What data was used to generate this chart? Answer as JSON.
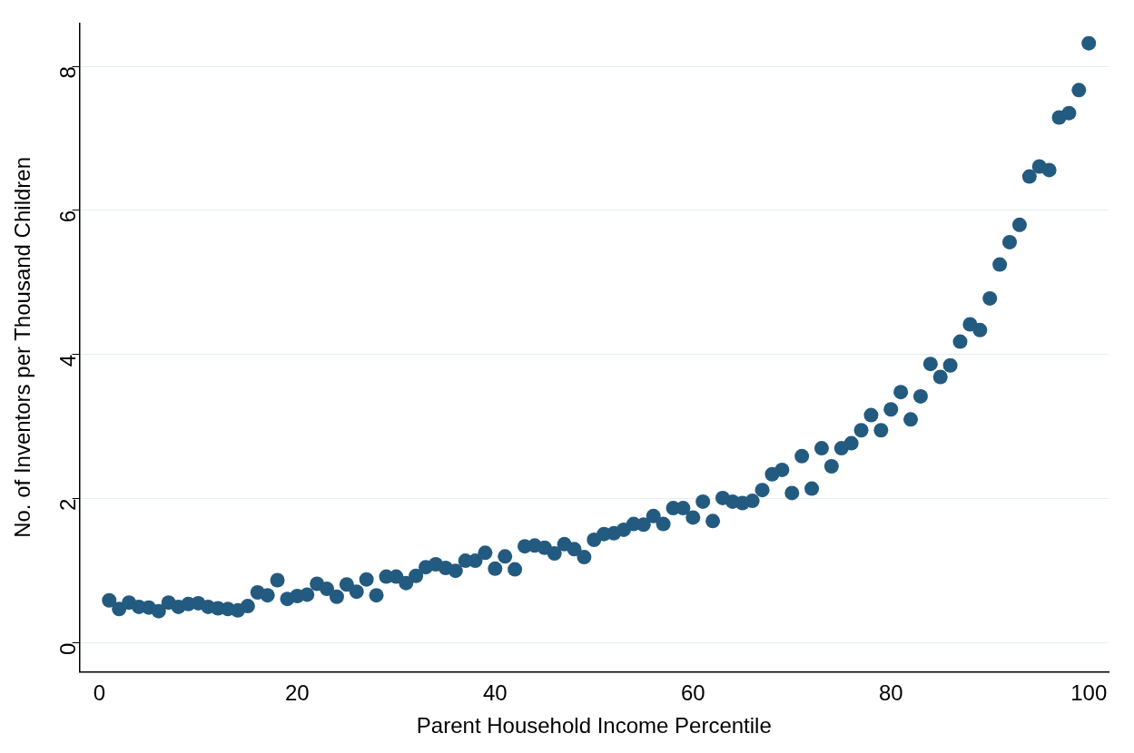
{
  "chart_data": {
    "type": "scatter",
    "xlabel": "Parent Household Income Percentile",
    "ylabel": "No. of Inventors per Thousand Children",
    "x": [
      1,
      2,
      3,
      4,
      5,
      6,
      7,
      8,
      9,
      10,
      11,
      12,
      13,
      14,
      15,
      16,
      17,
      18,
      19,
      20,
      21,
      22,
      23,
      24,
      25,
      26,
      27,
      28,
      29,
      30,
      31,
      32,
      33,
      34,
      35,
      36,
      37,
      38,
      39,
      40,
      41,
      42,
      43,
      44,
      45,
      46,
      47,
      48,
      49,
      50,
      51,
      52,
      53,
      54,
      55,
      56,
      57,
      58,
      59,
      60,
      61,
      62,
      63,
      64,
      65,
      66,
      67,
      68,
      69,
      70,
      71,
      72,
      73,
      74,
      75,
      76,
      77,
      78,
      79,
      80,
      81,
      82,
      83,
      84,
      85,
      86,
      87,
      88,
      89,
      90,
      91,
      92,
      93,
      94,
      95,
      96,
      97,
      98,
      99,
      100
    ],
    "values": [
      0.59,
      0.47,
      0.56,
      0.5,
      0.49,
      0.44,
      0.56,
      0.5,
      0.54,
      0.55,
      0.5,
      0.48,
      0.47,
      0.45,
      0.51,
      0.7,
      0.66,
      0.87,
      0.61,
      0.65,
      0.67,
      0.82,
      0.75,
      0.64,
      0.81,
      0.71,
      0.88,
      0.66,
      0.92,
      0.92,
      0.83,
      0.93,
      1.05,
      1.09,
      1.04,
      1.0,
      1.14,
      1.14,
      1.25,
      1.03,
      1.2,
      1.02,
      1.34,
      1.35,
      1.32,
      1.24,
      1.37,
      1.3,
      1.19,
      1.43,
      1.51,
      1.52,
      1.57,
      1.65,
      1.64,
      1.76,
      1.65,
      1.87,
      1.87,
      1.74,
      1.96,
      1.69,
      2.01,
      1.96,
      1.94,
      1.97,
      2.12,
      2.34,
      2.4,
      2.08,
      2.59,
      2.14,
      2.7,
      2.45,
      2.7,
      2.77,
      2.95,
      3.16,
      2.95,
      3.24,
      3.48,
      3.1,
      3.42,
      3.87,
      3.69,
      3.85,
      4.18,
      4.42,
      4.34,
      4.78,
      5.25,
      5.56,
      5.8,
      6.47,
      6.61,
      6.56,
      7.29,
      7.35,
      7.67,
      8.32
    ],
    "color": "#235a80",
    "marker": "circle",
    "xlim": [
      -2,
      102
    ],
    "xticks": [
      0,
      20,
      40,
      60,
      80,
      100
    ],
    "ylim": [
      -0.4,
      8.6
    ],
    "yticks": [
      0,
      2,
      4,
      6,
      8
    ],
    "grid": "y"
  }
}
